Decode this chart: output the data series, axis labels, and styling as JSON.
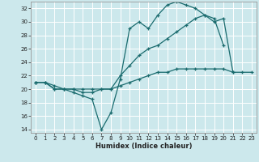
{
  "xlabel": "Humidex (Indice chaleur)",
  "bg_color": "#cce8ec",
  "grid_color": "#ffffff",
  "line_color": "#1a6b6e",
  "xlim": [
    -0.5,
    23.5
  ],
  "ylim": [
    13.5,
    33.0
  ],
  "yticks": [
    14,
    16,
    18,
    20,
    22,
    24,
    26,
    28,
    30,
    32
  ],
  "xticks": [
    0,
    1,
    2,
    3,
    4,
    5,
    6,
    7,
    8,
    9,
    10,
    11,
    12,
    13,
    14,
    15,
    16,
    17,
    18,
    19,
    20,
    21,
    22,
    23
  ],
  "line1_x": [
    0,
    1,
    2,
    3,
    4,
    5,
    6,
    7,
    8,
    9,
    10,
    11,
    12,
    13,
    14,
    15,
    16,
    17,
    18,
    19,
    20
  ],
  "line1_y": [
    21,
    21,
    20,
    20,
    19.5,
    19,
    18.5,
    14,
    16.5,
    21.5,
    29,
    30,
    29,
    31,
    32.5,
    33,
    32.5,
    32,
    31,
    30.5,
    26.5
  ],
  "line2_x": [
    0,
    1,
    2,
    3,
    4,
    5,
    6,
    7,
    8,
    9,
    10,
    11,
    12,
    13,
    14,
    15,
    16,
    17,
    18,
    19,
    20,
    21
  ],
  "line2_y": [
    21,
    21,
    20,
    20,
    20,
    19.5,
    19.5,
    20,
    20,
    22,
    23.5,
    25,
    26,
    26.5,
    27.5,
    28.5,
    29.5,
    30.5,
    31,
    30,
    30.5,
    22.5
  ],
  "line3_x": [
    0,
    1,
    2,
    3,
    4,
    5,
    6,
    7,
    8,
    9,
    10,
    11,
    12,
    13,
    14,
    15,
    16,
    17,
    18,
    19,
    20,
    21,
    22,
    23
  ],
  "line3_y": [
    21,
    21,
    20.5,
    20,
    20,
    20,
    20,
    20,
    20,
    20.5,
    21,
    21.5,
    22,
    22.5,
    22.5,
    23,
    23,
    23,
    23,
    23,
    23,
    22.5,
    22.5,
    22.5
  ]
}
